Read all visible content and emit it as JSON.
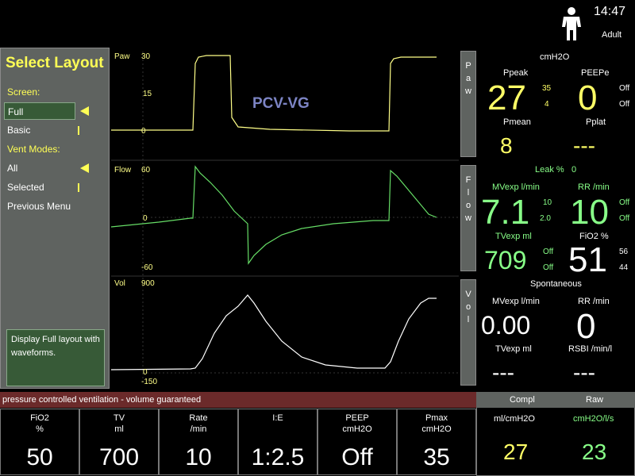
{
  "header": {
    "time": "14:47",
    "patient_type": "Adult"
  },
  "menu": {
    "title": "Select Layout",
    "screen_label": "Screen:",
    "screen_items": [
      "Full",
      "Basic"
    ],
    "vent_modes_label": "Vent Modes:",
    "vent_items": [
      "All",
      "Selected"
    ],
    "previous": "Previous Menu",
    "description": "Display Full layout with waveforms."
  },
  "waveforms": {
    "mode": "PCV-VG",
    "paw": {
      "name": "Paw",
      "ticks": [
        "30",
        "15",
        "0"
      ]
    },
    "flow": {
      "name": "Flow",
      "ticks": [
        "60",
        "0",
        "-60"
      ]
    },
    "vol": {
      "name": "Vol",
      "ticks": [
        "900",
        "0",
        "-150"
      ]
    },
    "side_buttons": {
      "paw": [
        "P",
        "a",
        "w"
      ],
      "flow": [
        "F",
        "l",
        "o",
        "w"
      ],
      "vol": [
        "V",
        "o",
        "l"
      ]
    }
  },
  "monitor": {
    "unit": "cmH2O",
    "ppeak": {
      "label": "Ppeak",
      "value": "27",
      "high": "35",
      "low": "4"
    },
    "peepe": {
      "label": "PEEPe",
      "value": "0",
      "high": "Off",
      "low": "Off"
    },
    "pmean": {
      "label": "Pmean",
      "value": "8"
    },
    "pplat": {
      "label": "Pplat",
      "value": "---"
    },
    "leak": {
      "label": "Leak %",
      "value": "0"
    },
    "mvexp": {
      "label": "MVexp  l/min",
      "value": "7.1",
      "high": "10",
      "low": "2.0"
    },
    "rr": {
      "label": "RR  /min",
      "value": "10",
      "high": "Off",
      "low": "Off"
    },
    "tvexp": {
      "label": "TVexp  ml",
      "value": "709",
      "high": "Off",
      "low": "Off"
    },
    "fio2": {
      "label": "FiO2  %",
      "value": "51",
      "high": "56",
      "low": "44"
    },
    "spontaneous": {
      "label": "Spontaneous",
      "mvexp": {
        "label": "MVexp  l/min",
        "value": "0.00"
      },
      "rr": {
        "label": "RR  /min",
        "value": "0"
      },
      "tvexp": {
        "label": "TVexp  ml",
        "value": "---"
      },
      "rsbi": {
        "label": "RSBI  /min/l",
        "value": "---"
      }
    }
  },
  "status": "pressure controlled ventilation - volume guaranteed",
  "settings": [
    {
      "label": "FiO2",
      "unit": "%",
      "value": "50"
    },
    {
      "label": "TV",
      "unit": "ml",
      "value": "700"
    },
    {
      "label": "Rate",
      "unit": "/min",
      "value": "10"
    },
    {
      "label": "I:E",
      "unit": "",
      "value": "1:2.5"
    },
    {
      "label": "PEEP",
      "unit": "cmH2O",
      "value": "Off"
    },
    {
      "label": "Pmax",
      "unit": "cmH2O",
      "value": "35"
    }
  ],
  "calculated": {
    "compl": {
      "label": "Compl",
      "unit": "ml/cmH2O",
      "value": "27"
    },
    "raw": {
      "label": "Raw",
      "unit": "cmH2O/l/s",
      "value": "23"
    }
  },
  "colors": {
    "yellow": "#ffff66",
    "green": "#88ff88",
    "menu_bg": "#5f6360",
    "status_bg": "#6b2a2a"
  }
}
